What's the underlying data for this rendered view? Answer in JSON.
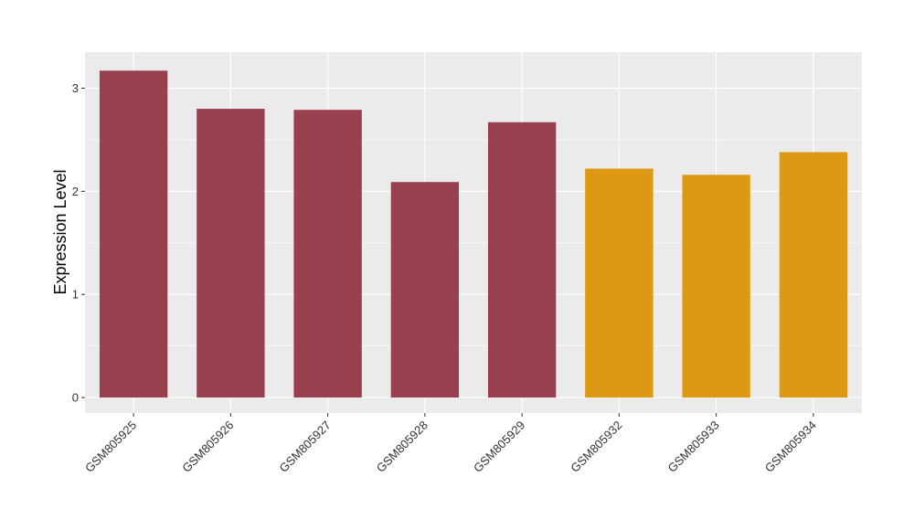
{
  "chart_data": {
    "type": "bar",
    "categories": [
      "GSM805925",
      "GSM805926",
      "GSM805927",
      "GSM805928",
      "GSM805929",
      "GSM805932",
      "GSM805933",
      "GSM805934"
    ],
    "values": [
      3.17,
      2.8,
      2.79,
      2.09,
      2.67,
      2.22,
      2.16,
      2.38
    ],
    "bar_colors": [
      "#99404f",
      "#99404f",
      "#99404f",
      "#99404f",
      "#99404f",
      "#dd9913",
      "#dd9913",
      "#dd9913"
    ],
    "title": "",
    "xlabel": "",
    "ylabel": "Expression Level",
    "ylim": [
      -0.15,
      3.35
    ],
    "yticks": [
      0,
      1,
      2,
      3
    ],
    "grid": true,
    "panel_background": "#ebebeb",
    "grid_color": "#ffffff",
    "legend": "none"
  }
}
